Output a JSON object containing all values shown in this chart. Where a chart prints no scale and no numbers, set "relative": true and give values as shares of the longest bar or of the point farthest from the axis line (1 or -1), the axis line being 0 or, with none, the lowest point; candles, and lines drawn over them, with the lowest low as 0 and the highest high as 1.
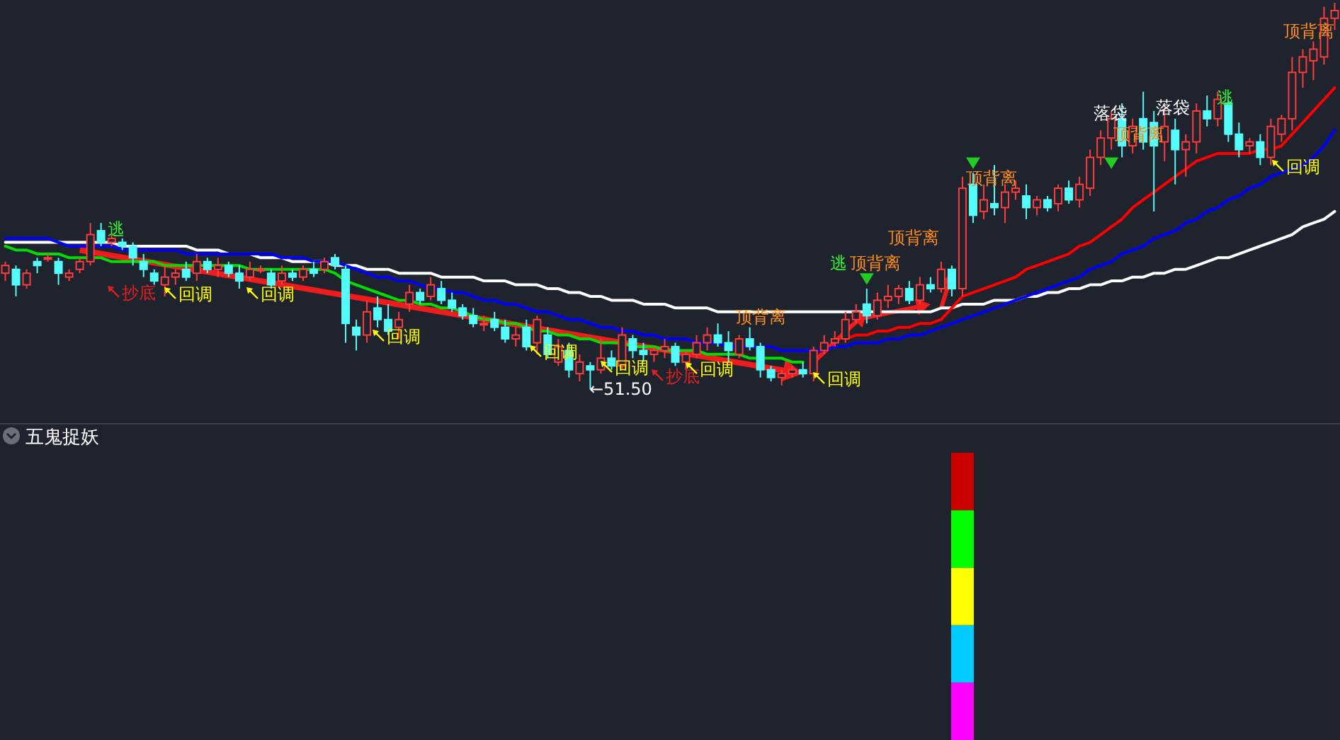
{
  "chart_data": [
    {
      "type": "candlestick",
      "relative": true,
      "categories": [
        null,
        null,
        null,
        null,
        null,
        null,
        null,
        null,
        null,
        null,
        null,
        null,
        null,
        null,
        null,
        null,
        null,
        null,
        null,
        null,
        null,
        null,
        null,
        null,
        null,
        null,
        null,
        null,
        null,
        null,
        null,
        null,
        null,
        null,
        null,
        null,
        null,
        null,
        null,
        null,
        null,
        null,
        null,
        null,
        null,
        null,
        null,
        null,
        null,
        null,
        null,
        null,
        null,
        null,
        null,
        null,
        null,
        null,
        null,
        null,
        null,
        null,
        null,
        null,
        null,
        null,
        null,
        null,
        null,
        null,
        null,
        null,
        null,
        null,
        null,
        null,
        null,
        null,
        null,
        null,
        null,
        null,
        null,
        null,
        null,
        null,
        null,
        null,
        null,
        null,
        null,
        null,
        null,
        null,
        null,
        null,
        null,
        null,
        null,
        null,
        null,
        null,
        null,
        null,
        null,
        null,
        null,
        null,
        null,
        null,
        null,
        null,
        null,
        null,
        null,
        null,
        null,
        null,
        null,
        null,
        null,
        null,
        null,
        null,
        null,
        null
      ],
      "ohlc": [
        [
          0.3,
          0.33,
          0.28,
          0.32
        ],
        [
          0.31,
          0.32,
          0.24,
          0.27
        ],
        [
          0.27,
          0.31,
          0.26,
          0.3
        ],
        [
          0.33,
          0.34,
          0.3,
          0.32
        ],
        [
          0.34,
          0.35,
          0.33,
          0.34
        ],
        [
          0.33,
          0.34,
          0.27,
          0.3
        ],
        [
          0.29,
          0.31,
          0.28,
          0.3
        ],
        [
          0.31,
          0.34,
          0.3,
          0.33
        ],
        [
          0.33,
          0.43,
          0.32,
          0.4
        ],
        [
          0.41,
          0.43,
          0.37,
          0.38
        ],
        [
          0.38,
          0.4,
          0.37,
          0.39
        ],
        [
          0.38,
          0.39,
          0.36,
          0.37
        ],
        [
          0.37,
          0.38,
          0.32,
          0.34
        ],
        [
          0.33,
          0.35,
          0.29,
          0.31
        ],
        [
          0.3,
          0.31,
          0.27,
          0.28
        ],
        [
          0.27,
          0.32,
          0.24,
          0.29
        ],
        [
          0.29,
          0.31,
          0.27,
          0.3
        ],
        [
          0.31,
          0.33,
          0.28,
          0.29
        ],
        [
          0.3,
          0.35,
          0.28,
          0.33
        ],
        [
          0.33,
          0.34,
          0.3,
          0.31
        ],
        [
          0.31,
          0.34,
          0.29,
          0.32
        ],
        [
          0.32,
          0.33,
          0.29,
          0.3
        ],
        [
          0.3,
          0.32,
          0.26,
          0.28
        ],
        [
          0.29,
          0.33,
          0.28,
          0.31
        ],
        [
          0.31,
          0.32,
          0.3,
          0.31
        ],
        [
          0.3,
          0.31,
          0.26,
          0.27
        ],
        [
          0.28,
          0.32,
          0.27,
          0.3
        ],
        [
          0.3,
          0.31,
          0.28,
          0.29
        ],
        [
          0.29,
          0.32,
          0.28,
          0.31
        ],
        [
          0.31,
          0.33,
          0.29,
          0.3
        ],
        [
          0.31,
          0.34,
          0.3,
          0.33
        ],
        [
          0.34,
          0.35,
          0.31,
          0.32
        ],
        [
          0.31,
          0.32,
          0.12,
          0.17
        ],
        [
          0.16,
          0.18,
          0.1,
          0.14
        ],
        [
          0.14,
          0.23,
          0.12,
          0.2
        ],
        [
          0.21,
          0.24,
          0.16,
          0.18
        ],
        [
          0.18,
          0.22,
          0.14,
          0.15
        ],
        [
          0.16,
          0.2,
          0.13,
          0.18
        ],
        [
          0.22,
          0.27,
          0.2,
          0.25
        ],
        [
          0.25,
          0.26,
          0.22,
          0.23
        ],
        [
          0.24,
          0.29,
          0.23,
          0.27
        ],
        [
          0.26,
          0.28,
          0.22,
          0.23
        ],
        [
          0.23,
          0.25,
          0.2,
          0.21
        ],
        [
          0.21,
          0.22,
          0.18,
          0.19
        ],
        [
          0.19,
          0.21,
          0.16,
          0.17
        ],
        [
          0.17,
          0.19,
          0.15,
          0.17
        ],
        [
          0.18,
          0.2,
          0.15,
          0.16
        ],
        [
          0.16,
          0.18,
          0.12,
          0.13
        ],
        [
          0.13,
          0.16,
          0.11,
          0.14
        ],
        [
          0.16,
          0.18,
          0.1,
          0.11
        ],
        [
          0.12,
          0.19,
          0.09,
          0.18
        ],
        [
          0.14,
          0.16,
          0.08,
          0.09
        ],
        [
          0.07,
          0.13,
          0.06,
          0.11
        ],
        [
          0.1,
          0.12,
          0.03,
          0.05
        ],
        [
          0.04,
          0.09,
          0.02,
          0.07
        ],
        [
          0.06,
          0.07,
          0.0,
          0.05
        ],
        [
          0.05,
          0.13,
          0.04,
          0.08
        ],
        [
          0.08,
          0.1,
          0.05,
          0.06
        ],
        [
          0.06,
          0.16,
          0.05,
          0.14
        ],
        [
          0.13,
          0.14,
          0.08,
          0.1
        ],
        [
          0.1,
          0.12,
          0.07,
          0.09
        ],
        [
          0.09,
          0.11,
          0.07,
          0.1
        ],
        [
          0.1,
          0.13,
          0.08,
          0.11
        ],
        [
          0.11,
          0.12,
          0.06,
          0.07
        ],
        [
          0.07,
          0.1,
          0.05,
          0.09
        ],
        [
          0.09,
          0.14,
          0.08,
          0.12
        ],
        [
          0.12,
          0.16,
          0.1,
          0.14
        ],
        [
          0.14,
          0.17,
          0.11,
          0.12
        ],
        [
          0.12,
          0.15,
          0.07,
          0.1
        ],
        [
          0.09,
          0.14,
          0.08,
          0.13
        ],
        [
          0.13,
          0.16,
          0.1,
          0.11
        ],
        [
          0.11,
          0.12,
          0.03,
          0.05
        ],
        [
          0.05,
          0.06,
          0.02,
          0.03
        ],
        [
          0.03,
          0.05,
          0.01,
          0.04
        ],
        [
          0.04,
          0.06,
          0.03,
          0.05
        ],
        [
          0.05,
          0.07,
          0.03,
          0.04
        ],
        [
          0.04,
          0.11,
          0.02,
          0.1
        ],
        [
          0.1,
          0.14,
          0.09,
          0.12
        ],
        [
          0.12,
          0.15,
          0.11,
          0.13
        ],
        [
          0.13,
          0.2,
          0.12,
          0.18
        ],
        [
          0.18,
          0.22,
          0.17,
          0.2
        ],
        [
          0.22,
          0.26,
          0.17,
          0.19
        ],
        [
          0.19,
          0.25,
          0.18,
          0.23
        ],
        [
          0.23,
          0.27,
          0.21,
          0.24
        ],
        [
          0.24,
          0.27,
          0.22,
          0.26
        ],
        [
          0.26,
          0.28,
          0.22,
          0.23
        ],
        [
          0.23,
          0.29,
          0.22,
          0.27
        ],
        [
          0.27,
          0.29,
          0.25,
          0.26
        ],
        [
          0.26,
          0.33,
          0.25,
          0.31
        ],
        [
          0.31,
          0.32,
          0.24,
          0.26
        ],
        [
          0.26,
          0.55,
          0.24,
          0.52
        ],
        [
          0.53,
          0.56,
          0.43,
          0.45
        ],
        [
          0.46,
          0.53,
          0.44,
          0.49
        ],
        [
          0.48,
          0.58,
          0.45,
          0.47
        ],
        [
          0.47,
          0.53,
          0.43,
          0.51
        ],
        [
          0.51,
          0.54,
          0.49,
          0.52
        ],
        [
          0.5,
          0.53,
          0.44,
          0.47
        ],
        [
          0.47,
          0.5,
          0.45,
          0.49
        ],
        [
          0.49,
          0.5,
          0.46,
          0.47
        ],
        [
          0.48,
          0.53,
          0.46,
          0.52
        ],
        [
          0.52,
          0.54,
          0.48,
          0.49
        ],
        [
          0.49,
          0.55,
          0.47,
          0.53
        ],
        [
          0.52,
          0.62,
          0.5,
          0.6
        ],
        [
          0.6,
          0.67,
          0.58,
          0.65
        ],
        [
          0.65,
          0.72,
          0.62,
          0.7
        ],
        [
          0.7,
          0.74,
          0.6,
          0.63
        ],
        [
          0.63,
          0.7,
          0.61,
          0.68
        ],
        [
          0.7,
          0.77,
          0.62,
          0.64
        ],
        [
          0.69,
          0.72,
          0.46,
          0.63
        ],
        [
          0.64,
          0.73,
          0.59,
          0.68
        ],
        [
          0.67,
          0.7,
          0.53,
          0.62
        ],
        [
          0.62,
          0.66,
          0.55,
          0.64
        ],
        [
          0.64,
          0.74,
          0.61,
          0.72
        ],
        [
          0.72,
          0.76,
          0.68,
          0.7
        ],
        [
          0.7,
          0.77,
          0.68,
          0.75
        ],
        [
          0.74,
          0.75,
          0.64,
          0.66
        ],
        [
          0.66,
          0.69,
          0.6,
          0.62
        ],
        [
          0.63,
          0.65,
          0.61,
          0.64
        ],
        [
          0.64,
          0.66,
          0.58,
          0.6
        ],
        [
          0.6,
          0.7,
          0.58,
          0.68
        ],
        [
          0.66,
          0.71,
          0.64,
          0.7
        ],
        [
          0.7,
          0.86,
          0.67,
          0.82
        ],
        [
          0.82,
          0.88,
          0.78,
          0.86
        ],
        [
          0.85,
          0.9,
          0.8,
          0.88
        ],
        [
          0.86,
          0.99,
          0.84,
          0.96
        ],
        [
          0.96,
          1.0,
          0.93,
          0.98
        ]
      ],
      "series": [
        {
          "type": "line",
          "color": "#ffffff",
          "values": [
            0.38,
            0.38,
            0.38,
            0.38,
            0.38,
            0.38,
            0.38,
            0.38,
            0.38,
            0.38,
            0.38,
            0.37,
            0.37,
            0.37,
            0.37,
            0.37,
            0.37,
            0.37,
            0.36,
            0.36,
            0.36,
            0.35,
            0.35,
            0.35,
            0.34,
            0.34,
            0.34,
            0.33,
            0.33,
            0.33,
            0.33,
            0.32,
            0.32,
            0.32,
            0.31,
            0.31,
            0.31,
            0.3,
            0.3,
            0.3,
            0.3,
            0.29,
            0.29,
            0.29,
            0.29,
            0.28,
            0.28,
            0.28,
            0.27,
            0.27,
            0.27,
            0.26,
            0.26,
            0.25,
            0.25,
            0.24,
            0.24,
            0.23,
            0.23,
            0.23,
            0.22,
            0.22,
            0.22,
            0.21,
            0.21,
            0.21,
            0.21,
            0.2,
            0.2,
            0.2,
            0.2,
            0.2,
            0.2,
            0.2,
            0.2,
            0.2,
            0.2,
            0.2,
            0.2,
            0.2,
            0.2,
            0.2,
            0.2,
            0.2,
            0.2,
            0.2,
            0.2,
            0.2,
            0.21,
            0.21,
            0.22,
            0.22,
            0.22,
            0.23,
            0.23,
            0.23,
            0.24,
            0.24,
            0.25,
            0.25,
            0.26,
            0.26,
            0.27,
            0.27,
            0.28,
            0.28,
            0.29,
            0.29,
            0.3,
            0.3,
            0.31,
            0.31,
            0.32,
            0.33,
            0.34,
            0.34,
            0.35,
            0.36,
            0.37,
            0.38,
            0.39,
            0.4,
            0.42,
            0.43,
            0.44,
            0.46
          ]
        },
        {
          "type": "line",
          "color": "#0000ff",
          "values": [
            0.39,
            0.39,
            0.39,
            0.39,
            0.39,
            0.38,
            0.37,
            0.37,
            0.37,
            0.37,
            0.37,
            0.36,
            0.36,
            0.36,
            0.36,
            0.36,
            0.36,
            0.35,
            0.35,
            0.35,
            0.35,
            0.35,
            0.35,
            0.35,
            0.35,
            0.35,
            0.34,
            0.34,
            0.34,
            0.33,
            0.33,
            0.33,
            0.32,
            0.31,
            0.3,
            0.29,
            0.29,
            0.28,
            0.28,
            0.27,
            0.26,
            0.26,
            0.25,
            0.25,
            0.24,
            0.23,
            0.23,
            0.22,
            0.22,
            0.21,
            0.2,
            0.2,
            0.19,
            0.18,
            0.18,
            0.17,
            0.16,
            0.16,
            0.15,
            0.15,
            0.14,
            0.14,
            0.13,
            0.13,
            0.13,
            0.12,
            0.12,
            0.12,
            0.11,
            0.11,
            0.11,
            0.11,
            0.11,
            0.1,
            0.1,
            0.1,
            0.1,
            0.1,
            0.11,
            0.11,
            0.12,
            0.12,
            0.12,
            0.13,
            0.13,
            0.14,
            0.14,
            0.15,
            0.16,
            0.17,
            0.18,
            0.19,
            0.2,
            0.21,
            0.22,
            0.23,
            0.24,
            0.25,
            0.26,
            0.27,
            0.28,
            0.29,
            0.31,
            0.32,
            0.33,
            0.35,
            0.36,
            0.37,
            0.39,
            0.4,
            0.41,
            0.43,
            0.44,
            0.46,
            0.47,
            0.49,
            0.5,
            0.52,
            0.53,
            0.55,
            0.56,
            0.57,
            0.58,
            0.6,
            0.63,
            0.67
          ]
        },
        {
          "type": "line",
          "color": "#00dd00",
          "values": [
            0.37,
            0.36,
            0.36,
            0.35,
            0.35,
            0.35,
            0.34,
            0.34,
            0.34,
            0.34,
            0.33,
            0.33,
            0.33,
            0.33,
            0.33,
            0.32,
            0.32,
            0.32,
            0.32,
            0.32,
            0.32,
            0.32,
            0.32,
            0.31,
            0.31,
            0.31,
            0.31,
            0.31,
            0.31,
            0.31,
            0.31,
            0.3,
            0.28,
            0.27,
            0.26,
            0.25,
            0.24,
            0.23,
            0.23,
            0.22,
            0.22,
            0.21,
            0.21,
            0.2,
            0.19,
            0.18,
            0.18,
            0.17,
            0.17,
            0.16,
            0.15,
            0.15,
            0.14,
            0.14,
            0.13,
            0.13,
            0.12,
            0.12,
            0.12,
            0.11,
            0.11,
            0.11,
            0.1,
            0.1,
            0.1,
            0.1,
            0.09,
            0.09,
            0.09,
            0.09,
            0.08,
            0.08,
            0.08,
            0.08,
            0.07,
            0.07,
            null,
            null,
            null,
            null,
            null,
            null,
            null,
            null,
            null,
            null,
            null,
            null,
            null,
            null,
            null,
            null,
            null,
            null,
            null,
            null,
            null,
            null,
            null,
            null,
            null,
            null,
            null,
            null,
            null,
            null,
            null,
            null,
            null,
            null,
            null,
            null,
            null,
            null,
            null,
            null,
            null,
            null,
            null,
            null,
            null,
            null,
            null,
            null,
            null,
            null
          ]
        },
        {
          "type": "line",
          "color": "#ff0000",
          "values": [
            null,
            null,
            null,
            null,
            null,
            null,
            null,
            null,
            null,
            null,
            null,
            null,
            null,
            null,
            null,
            null,
            null,
            null,
            null,
            null,
            null,
            null,
            null,
            null,
            null,
            null,
            null,
            null,
            null,
            null,
            null,
            null,
            null,
            null,
            null,
            null,
            null,
            null,
            null,
            null,
            null,
            null,
            null,
            null,
            null,
            null,
            null,
            null,
            null,
            null,
            null,
            null,
            null,
            null,
            null,
            null,
            null,
            null,
            null,
            null,
            null,
            null,
            null,
            null,
            null,
            null,
            null,
            null,
            null,
            null,
            null,
            null,
            null,
            null,
            null,
            null,
            null,
            null,
            null,
            0.13,
            0.14,
            0.14,
            0.15,
            0.15,
            0.16,
            0.16,
            0.17,
            0.17,
            0.18,
            0.21,
            0.24,
            0.25,
            0.26,
            0.27,
            0.28,
            0.29,
            0.31,
            0.32,
            0.33,
            0.34,
            0.35,
            0.37,
            0.38,
            0.4,
            0.42,
            0.44,
            0.47,
            0.49,
            0.51,
            0.53,
            0.55,
            0.57,
            0.59,
            0.6,
            0.61,
            0.61,
            0.61,
            0.61,
            0.62,
            0.62,
            0.63,
            0.66,
            0.69,
            0.72,
            0.75,
            0.78
          ]
        }
      ],
      "annotations": [
        "逃",
        "抄底",
        "回调",
        "回调",
        "回调",
        "回调",
        "回调",
        "抄底",
        "回调",
        "顶背离",
        "回调",
        "逃",
        "顶背离",
        "顶背离",
        "顶背离",
        "落袋",
        "顶背离",
        "落袋",
        "逃",
        "回调",
        "顶背离",
        "←51.50"
      ]
    },
    {
      "type": "bar",
      "title": "五鬼捉妖",
      "stacked": true,
      "relative": true,
      "categories": [
        null,
        null,
        null,
        null,
        null,
        null,
        null,
        null,
        null,
        null,
        null,
        null,
        null,
        null,
        null,
        null,
        null,
        null,
        null,
        null,
        null,
        null,
        null,
        null,
        null,
        null,
        null,
        null,
        null,
        null,
        null,
        null,
        null,
        null,
        null,
        null,
        null,
        null,
        null,
        null,
        null,
        null,
        null,
        null,
        null,
        null,
        null,
        null,
        null,
        null,
        null,
        null,
        null,
        null,
        null,
        null,
        null,
        null,
        null,
        null,
        null,
        null,
        null,
        null,
        null,
        null,
        null,
        null,
        null,
        null,
        null,
        null,
        null,
        null,
        null,
        null,
        null,
        null,
        null,
        null,
        null,
        null,
        null,
        null,
        null,
        null,
        null,
        null,
        null,
        null,
        null,
        null,
        null,
        null,
        null,
        null,
        null,
        null,
        null,
        null,
        null,
        null,
        null,
        null,
        null,
        null,
        null,
        null,
        null,
        null,
        null,
        null,
        null,
        null,
        null,
        null,
        null,
        null,
        null,
        null,
        null,
        null,
        null,
        null,
        null,
        null
      ],
      "series": [
        {
          "color": "#ff00ff",
          "values": [
            null,
            null,
            null,
            null,
            null,
            null,
            null,
            null,
            null,
            null,
            null,
            null,
            null,
            null,
            null,
            null,
            null,
            null,
            null,
            null,
            null,
            null,
            null,
            null,
            null,
            null,
            null,
            null,
            null,
            null,
            null,
            null,
            null,
            null,
            null,
            null,
            null,
            null,
            null,
            null,
            null,
            null,
            null,
            null,
            null,
            null,
            null,
            null,
            null,
            null,
            null,
            null,
            null,
            null,
            null,
            null,
            null,
            null,
            null,
            null,
            null,
            null,
            null,
            null,
            null,
            null,
            null,
            null,
            null,
            null,
            null,
            null,
            null,
            null,
            null,
            null,
            null,
            null,
            null,
            null,
            null,
            null,
            null,
            null,
            null,
            null,
            null,
            null,
            null,
            null,
            0.2,
            null,
            null,
            null,
            null,
            null,
            null,
            null,
            null,
            null,
            null,
            null,
            null,
            null,
            null,
            null,
            null,
            null,
            null,
            null,
            null,
            null,
            null,
            null,
            null,
            null,
            null,
            null,
            null,
            null,
            null,
            null,
            null,
            null,
            null,
            null
          ]
        },
        {
          "color": "#00ccff",
          "values": [
            null,
            null,
            null,
            null,
            null,
            null,
            null,
            null,
            null,
            null,
            null,
            null,
            null,
            null,
            null,
            null,
            null,
            null,
            null,
            null,
            null,
            null,
            null,
            null,
            null,
            null,
            null,
            null,
            null,
            null,
            null,
            null,
            null,
            null,
            null,
            null,
            null,
            null,
            null,
            null,
            null,
            null,
            null,
            null,
            null,
            null,
            null,
            null,
            null,
            null,
            null,
            null,
            null,
            null,
            null,
            null,
            null,
            null,
            null,
            null,
            null,
            null,
            null,
            null,
            null,
            null,
            null,
            null,
            null,
            null,
            null,
            null,
            null,
            null,
            null,
            null,
            null,
            null,
            null,
            null,
            null,
            null,
            null,
            null,
            null,
            null,
            null,
            null,
            null,
            null,
            0.2,
            null,
            null,
            null,
            null,
            null,
            null,
            null,
            null,
            null,
            null,
            null,
            null,
            null,
            null,
            null,
            null,
            null,
            null,
            null,
            null,
            null,
            null,
            null,
            null,
            null,
            null,
            null,
            null,
            null,
            null,
            null,
            null,
            null,
            null,
            null
          ]
        },
        {
          "color": "#ffff00",
          "values": [
            null,
            null,
            null,
            null,
            null,
            null,
            null,
            null,
            null,
            null,
            null,
            null,
            null,
            null,
            null,
            null,
            null,
            null,
            null,
            null,
            null,
            null,
            null,
            null,
            null,
            null,
            null,
            null,
            null,
            null,
            null,
            null,
            null,
            null,
            null,
            null,
            null,
            null,
            null,
            null,
            null,
            null,
            null,
            null,
            null,
            null,
            null,
            null,
            null,
            null,
            null,
            null,
            null,
            null,
            null,
            null,
            null,
            null,
            null,
            null,
            null,
            null,
            null,
            null,
            null,
            null,
            null,
            null,
            null,
            null,
            null,
            null,
            null,
            null,
            null,
            null,
            null,
            null,
            null,
            null,
            null,
            null,
            null,
            null,
            null,
            null,
            null,
            null,
            null,
            null,
            0.2,
            null,
            null,
            null,
            null,
            null,
            null,
            null,
            null,
            null,
            null,
            null,
            null,
            null,
            null,
            null,
            null,
            null,
            null,
            null,
            null,
            null,
            null,
            null,
            null,
            null,
            null,
            null,
            null,
            null,
            null,
            null,
            null,
            null,
            null,
            null
          ]
        },
        {
          "color": "#00ff00",
          "values": [
            null,
            null,
            null,
            null,
            null,
            null,
            null,
            null,
            null,
            null,
            null,
            null,
            null,
            null,
            null,
            null,
            null,
            null,
            null,
            null,
            null,
            null,
            null,
            null,
            null,
            null,
            null,
            null,
            null,
            null,
            null,
            null,
            null,
            null,
            null,
            null,
            null,
            null,
            null,
            null,
            null,
            null,
            null,
            null,
            null,
            null,
            null,
            null,
            null,
            null,
            null,
            null,
            null,
            null,
            null,
            null,
            null,
            null,
            null,
            null,
            null,
            null,
            null,
            null,
            null,
            null,
            null,
            null,
            null,
            null,
            null,
            null,
            null,
            null,
            null,
            null,
            null,
            null,
            null,
            null,
            null,
            null,
            null,
            null,
            null,
            null,
            null,
            null,
            null,
            null,
            0.2,
            null,
            null,
            null,
            null,
            null,
            null,
            null,
            null,
            null,
            null,
            null,
            null,
            null,
            null,
            null,
            null,
            null,
            null,
            null,
            null,
            null,
            null,
            null,
            null,
            null,
            null,
            null,
            null,
            null,
            null,
            null,
            null,
            null,
            null,
            null
          ]
        },
        {
          "color": "#cc0000",
          "values": [
            null,
            null,
            null,
            null,
            null,
            null,
            null,
            null,
            null,
            null,
            null,
            null,
            null,
            null,
            null,
            null,
            null,
            null,
            null,
            null,
            null,
            null,
            null,
            null,
            null,
            null,
            null,
            null,
            null,
            null,
            null,
            null,
            null,
            null,
            null,
            null,
            null,
            null,
            null,
            null,
            null,
            null,
            null,
            null,
            null,
            null,
            null,
            null,
            null,
            null,
            null,
            null,
            null,
            null,
            null,
            null,
            null,
            null,
            null,
            null,
            null,
            null,
            null,
            null,
            null,
            null,
            null,
            null,
            null,
            null,
            null,
            null,
            null,
            null,
            null,
            null,
            null,
            null,
            null,
            null,
            null,
            null,
            null,
            null,
            null,
            null,
            null,
            null,
            null,
            null,
            0.2,
            null,
            null,
            null,
            null,
            null,
            null,
            null,
            null,
            null,
            null,
            null,
            null,
            null,
            null,
            null,
            null,
            null,
            null,
            null,
            null,
            null,
            null,
            null,
            null,
            null,
            null,
            null,
            null,
            null,
            null,
            null,
            null,
            null,
            null,
            null
          ]
        }
      ]
    }
  ]
}
